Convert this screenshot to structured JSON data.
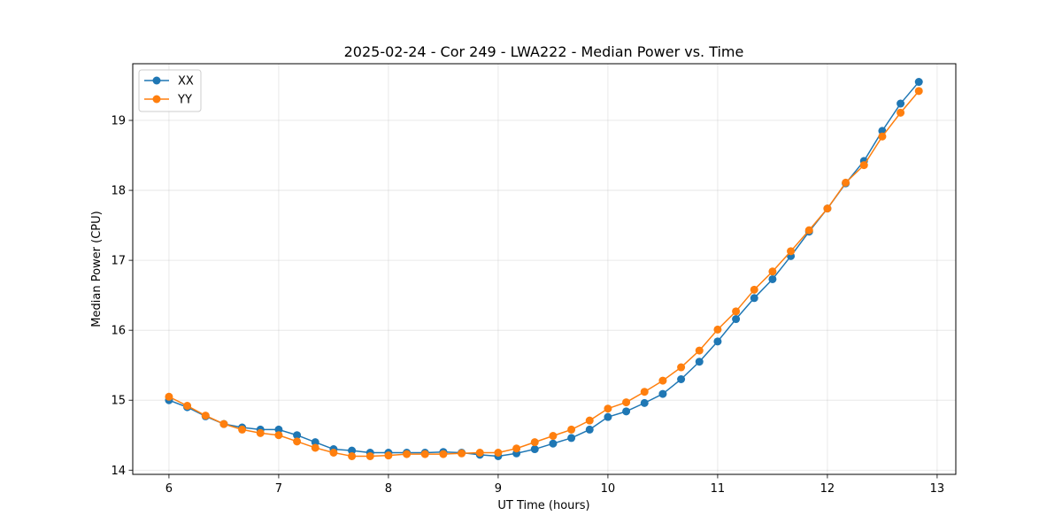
{
  "chart_data": {
    "type": "line",
    "title": "2025-02-24 - Cor 249 - LWA222 - Median Power vs. Time",
    "xlabel": "UT Time (hours)",
    "ylabel": "Median Power (CPU)",
    "xlim": [
      5.67,
      13.17
    ],
    "ylim": [
      13.94,
      19.81
    ],
    "xticks": [
      6,
      7,
      8,
      9,
      10,
      11,
      12,
      13
    ],
    "yticks": [
      14,
      15,
      16,
      17,
      18,
      19
    ],
    "grid": true,
    "legend_position": "top-left",
    "x": [
      6.0,
      6.1667,
      6.3333,
      6.5,
      6.6667,
      6.8333,
      7.0,
      7.1667,
      7.3333,
      7.5,
      7.6667,
      7.8333,
      8.0,
      8.1667,
      8.3333,
      8.5,
      8.6667,
      8.8333,
      9.0,
      9.1667,
      9.3333,
      9.5,
      9.6667,
      9.8333,
      10.0,
      10.1667,
      10.3333,
      10.5,
      10.6667,
      10.8333,
      11.0,
      11.1667,
      11.3333,
      11.5,
      11.6667,
      11.8333,
      12.0,
      12.1667,
      12.3333,
      12.5,
      12.6667,
      12.8333
    ],
    "series": [
      {
        "name": "XX",
        "color": "#1f77b4",
        "values": [
          15.0,
          14.9,
          14.77,
          14.66,
          14.61,
          14.58,
          14.58,
          14.5,
          14.4,
          14.3,
          14.28,
          14.25,
          14.25,
          14.25,
          14.25,
          14.26,
          14.25,
          14.22,
          14.2,
          14.24,
          14.3,
          14.38,
          14.46,
          14.58,
          14.76,
          14.84,
          14.96,
          15.09,
          15.3,
          15.55,
          15.84,
          16.16,
          16.46,
          16.73,
          17.06,
          17.41,
          17.74,
          18.1,
          18.42,
          18.85,
          19.24,
          19.55
        ]
      },
      {
        "name": "YY",
        "color": "#ff7f0e",
        "values": [
          15.05,
          14.92,
          14.78,
          14.66,
          14.58,
          14.53,
          14.5,
          14.41,
          14.32,
          14.25,
          14.2,
          14.2,
          14.21,
          14.23,
          14.23,
          14.23,
          14.24,
          14.25,
          14.25,
          14.31,
          14.4,
          14.49,
          14.58,
          14.71,
          14.88,
          14.97,
          15.12,
          15.28,
          15.47,
          15.71,
          16.01,
          16.27,
          16.58,
          16.84,
          17.13,
          17.43,
          17.74,
          18.11,
          18.36,
          18.77,
          19.11,
          19.42
        ]
      }
    ]
  }
}
